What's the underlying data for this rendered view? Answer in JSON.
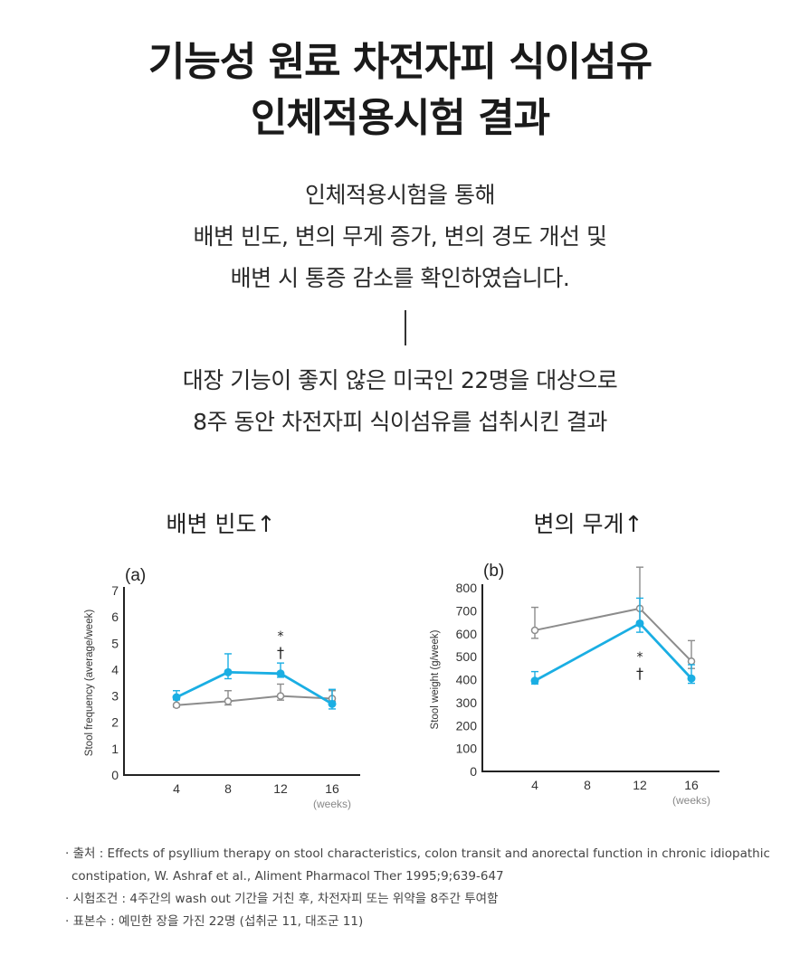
{
  "title": {
    "line1": "기능성 원료 차전자피 식이섬유",
    "line2": "인체적용시험 결과"
  },
  "intro": {
    "lines": [
      "인체적용시험을 통해",
      "배변 빈도, 변의 무게 증가, 변의 경도 개선 및",
      "배변 시 통증 감소를 확인하였습니다."
    ]
  },
  "study": {
    "lines": [
      "대장 기능이 좋지 않은 미국인 22명을 대상으로",
      "8주 동안 차전자피 식이섬유를 섭취시킨 결과"
    ]
  },
  "colors": {
    "treatment": "#1aaee3",
    "control": "#8c8c8c",
    "axis": "#222222"
  },
  "chart_data": [
    {
      "type": "line",
      "heading": "배변 빈도↑",
      "panel_label": "(a)",
      "ylabel": "Stool frequency (average/week)",
      "xunit": "(weeks)",
      "xticks": [
        "4",
        "8",
        "12",
        "16"
      ],
      "yticks": [
        "0",
        "1",
        "2",
        "3",
        "4",
        "5",
        "6",
        "7"
      ],
      "ylim": [
        0,
        7
      ],
      "grid": false,
      "series": [
        {
          "key": "treatment",
          "marker": "filled",
          "x": [
            4,
            8,
            12,
            16
          ],
          "values": [
            2.95,
            3.9,
            3.85,
            2.7
          ],
          "error": [
            0.25,
            0.7,
            0.4,
            0.55
          ]
        },
        {
          "key": "control",
          "marker": "open",
          "x": [
            4,
            8,
            12,
            16
          ],
          "values": [
            2.65,
            2.8,
            3.0,
            2.9
          ],
          "error": [
            0.2,
            0.4,
            0.45,
            0.3
          ]
        }
      ],
      "annotations": [
        {
          "x": 12,
          "text1": "*",
          "text2": "†"
        }
      ]
    },
    {
      "type": "line",
      "heading": "변의 무게↑",
      "panel_label": "(b)",
      "ylabel": "Stool weight (g/week)",
      "xunit": "(weeks)",
      "xticks": [
        "4",
        "8",
        "12",
        "16"
      ],
      "yticks": [
        "0",
        "100",
        "200",
        "300",
        "400",
        "500",
        "600",
        "700",
        "800"
      ],
      "ylim": [
        0,
        800
      ],
      "grid": false,
      "series": [
        {
          "key": "treatment",
          "marker": "filled",
          "x": [
            4,
            12,
            16
          ],
          "values": [
            395,
            645,
            405
          ],
          "error": [
            40,
            110,
            60
          ]
        },
        {
          "key": "control",
          "marker": "open",
          "x": [
            4,
            12,
            16
          ],
          "values": [
            615,
            710,
            480
          ],
          "error": [
            100,
            180,
            90
          ]
        }
      ],
      "annotations": [
        {
          "x": 12,
          "text1": "*",
          "text2": "†"
        }
      ]
    }
  ],
  "notes": [
    "· 출처 : Effects of psyllium therapy on stool characteristics, colon transit and anorectal function in chronic idiopathic constipation, W. Ashraf et al., Aliment Pharmacol Ther 1995;9;639-647",
    "· 시험조건 : 4주간의 wash out 기간을 거친 후, 차전자피 또는 위약을 8주간 투여함",
    "· 표본수 : 예민한 장을 가진 22명 (섭취군 11, 대조군 11)"
  ]
}
